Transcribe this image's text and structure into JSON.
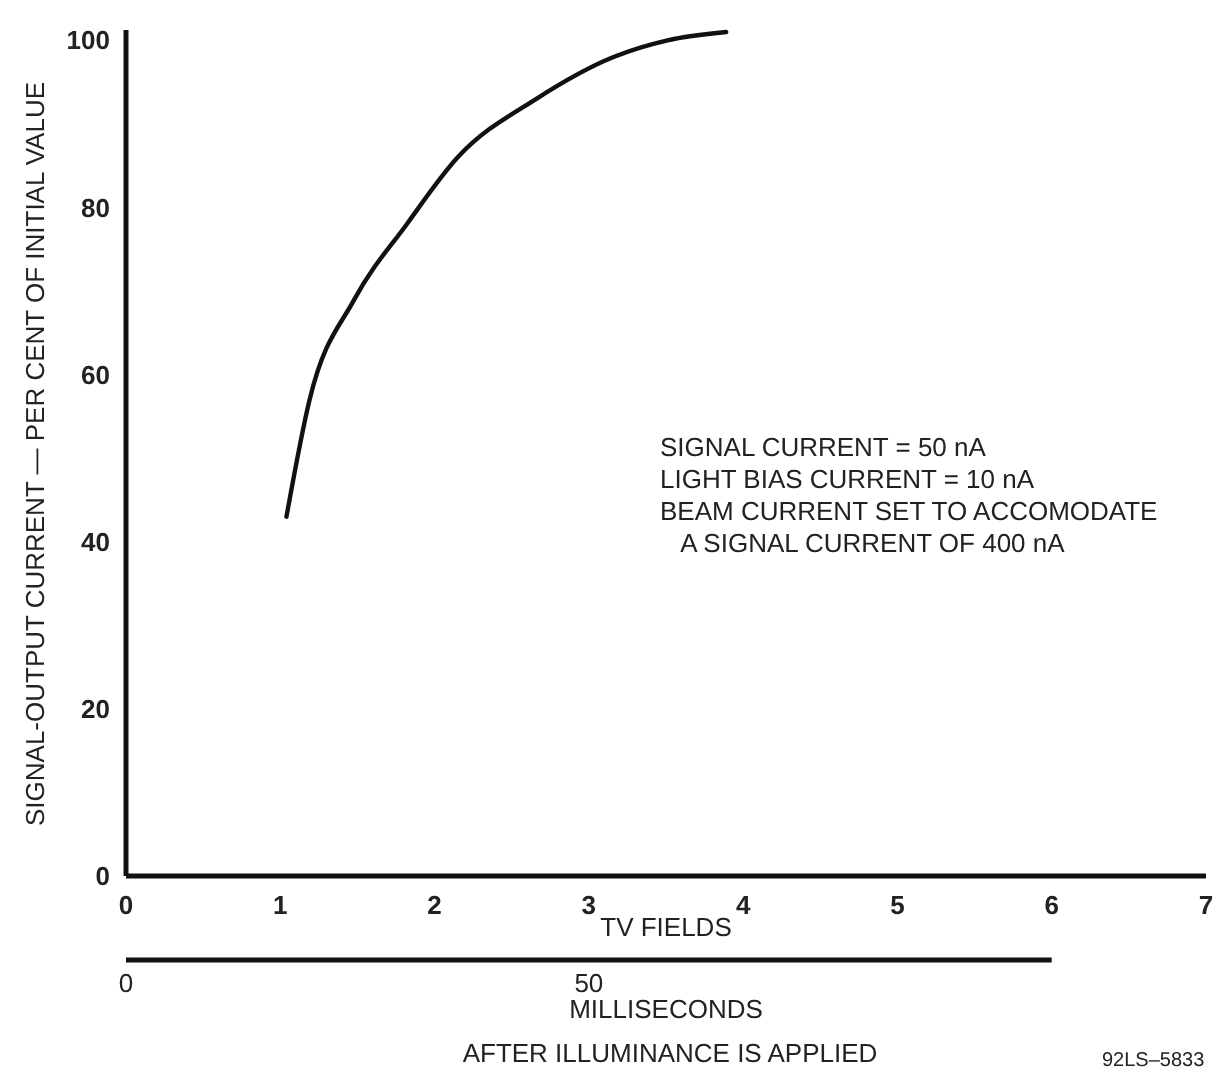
{
  "chart_data": {
    "type": "line",
    "xlabel": "TV FIELDS",
    "x2label": "MILLISECONDS",
    "ylabel": "SIGNAL-OUTPUT CURRENT — PER CENT OF INITIAL VALUE",
    "x": [
      1.04,
      1.19,
      1.48,
      1.82,
      2.15,
      2.66,
      3.16,
      3.51,
      3.89
    ],
    "series": [
      {
        "color": "#111111",
        "values": [
          43,
          57,
          69,
          78,
          86,
          93,
          98,
          100,
          101
        ]
      }
    ],
    "xlim": [
      0,
      7
    ],
    "xticks": [
      0,
      1,
      2,
      3,
      4,
      5,
      6,
      7
    ],
    "x2lim": [
      0,
      100
    ],
    "x2ticks": [
      0,
      50
    ],
    "ylim": [
      0,
      101
    ],
    "yticks": [
      0,
      20,
      40,
      60,
      80,
      100
    ],
    "grid": false,
    "marker": "none",
    "line_style": "solid",
    "annotations": [
      "SIGNAL CURRENT = 50 nA\nLIGHT BIAS CURRENT = 10 nA\nBEAM CURRENT SET TO ACCOMODATE\n   A SIGNAL CURRENT OF 400 nA",
      "AFTER ILLUMINANCE IS APPLIED",
      "92LS–5833"
    ]
  }
}
